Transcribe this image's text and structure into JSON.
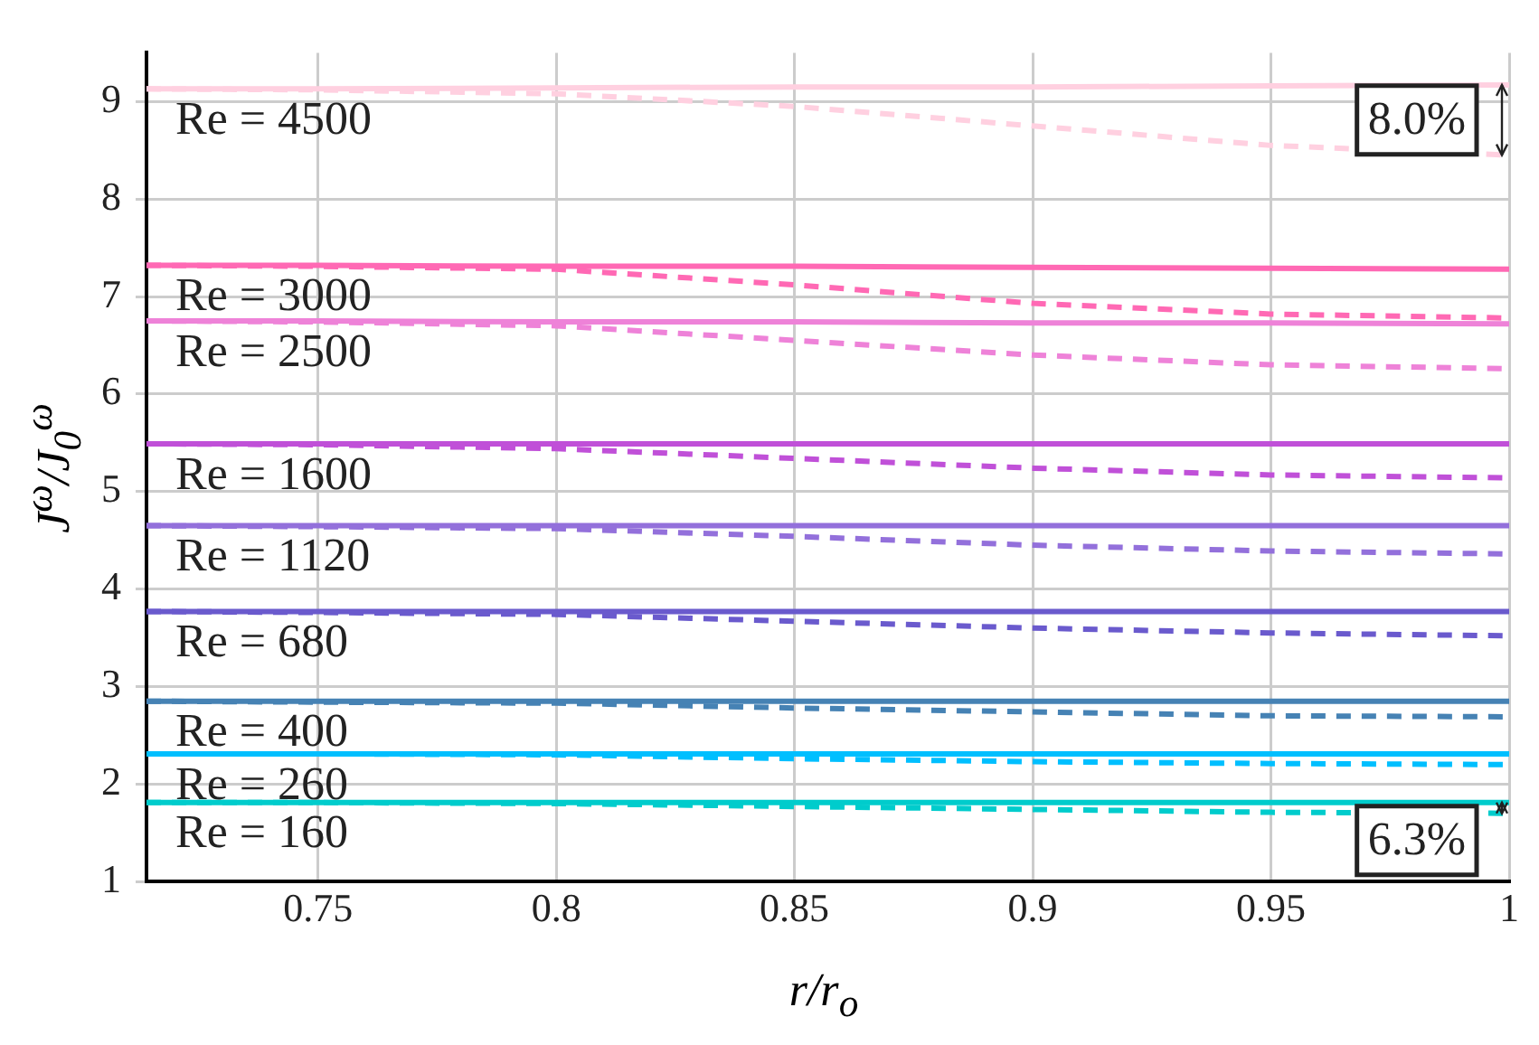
{
  "chart_data": {
    "type": "line",
    "xlabel": "r/r$_{o}$",
    "ylabel": "J$^{ω}$/J$_{0}$$^{ω}$",
    "x": [
      0.714,
      0.75,
      0.8,
      0.85,
      0.9,
      0.95,
      1.0
    ],
    "xlim": [
      0.714,
      1
    ],
    "xticks": [
      0.75,
      0.8,
      0.85,
      0.9,
      0.95,
      1
    ],
    "ylim": [
      1,
      9.5
    ],
    "yticks": [
      1,
      2,
      3,
      4,
      5,
      6,
      7,
      8,
      9
    ],
    "grid": true,
    "legend": false,
    "marker": "none",
    "series": [
      {
        "name": "Re = 4500",
        "color": "#ffd0e0",
        "line_style": "solid",
        "values": [
          9.13,
          9.13,
          9.14,
          9.15,
          9.15,
          9.16,
          9.17
        ]
      },
      {
        "color": "#ffd0e0",
        "line_style": "dashed",
        "values": [
          9.13,
          9.12,
          9.08,
          8.95,
          8.75,
          8.55,
          8.45
        ]
      },
      {
        "name": "Re = 3000",
        "color": "#ff69b4",
        "line_style": "solid",
        "values": [
          7.32,
          7.32,
          7.31,
          7.31,
          7.3,
          7.29,
          7.28
        ]
      },
      {
        "color": "#ff69b4",
        "line_style": "dashed",
        "values": [
          7.32,
          7.31,
          7.28,
          7.12,
          6.93,
          6.82,
          6.78
        ]
      },
      {
        "name": "Re = 2500",
        "color": "#ee82d8",
        "line_style": "solid",
        "values": [
          6.75,
          6.75,
          6.74,
          6.74,
          6.73,
          6.73,
          6.72
        ]
      },
      {
        "color": "#ee82d8",
        "line_style": "dashed",
        "values": [
          6.75,
          6.74,
          6.7,
          6.55,
          6.4,
          6.3,
          6.26
        ]
      },
      {
        "name": "Re = 1600",
        "color": "#c050d8",
        "line_style": "solid",
        "values": [
          5.49,
          5.49,
          5.49,
          5.49,
          5.49,
          5.49,
          5.49
        ]
      },
      {
        "color": "#c050d8",
        "line_style": "dashed",
        "values": [
          5.49,
          5.48,
          5.44,
          5.34,
          5.24,
          5.17,
          5.14
        ]
      },
      {
        "name": "Re = 1120",
        "color": "#9370db",
        "line_style": "solid",
        "values": [
          4.65,
          4.65,
          4.65,
          4.65,
          4.65,
          4.65,
          4.65
        ]
      },
      {
        "color": "#9370db",
        "line_style": "dashed",
        "values": [
          4.65,
          4.64,
          4.62,
          4.54,
          4.45,
          4.39,
          4.36
        ]
      },
      {
        "name": "Re = 680",
        "color": "#6a5acd",
        "line_style": "solid",
        "values": [
          3.77,
          3.77,
          3.77,
          3.77,
          3.77,
          3.77,
          3.77
        ]
      },
      {
        "color": "#6a5acd",
        "line_style": "dashed",
        "values": [
          3.77,
          3.76,
          3.74,
          3.67,
          3.6,
          3.55,
          3.52
        ]
      },
      {
        "name": "Re = 400",
        "color": "#4682b4",
        "line_style": "solid",
        "values": [
          2.85,
          2.85,
          2.85,
          2.85,
          2.85,
          2.85,
          2.85
        ]
      },
      {
        "color": "#4682b4",
        "line_style": "dashed",
        "values": [
          2.85,
          2.84,
          2.83,
          2.78,
          2.74,
          2.7,
          2.69
        ]
      },
      {
        "name": "Re = 260",
        "color": "#00bfff",
        "line_style": "solid",
        "values": [
          2.31,
          2.31,
          2.31,
          2.31,
          2.31,
          2.31,
          2.31
        ]
      },
      {
        "color": "#00bfff",
        "line_style": "dashed",
        "values": [
          2.31,
          2.31,
          2.3,
          2.26,
          2.23,
          2.21,
          2.2
        ]
      },
      {
        "name": "Re = 160",
        "color": "#00cccc",
        "line_style": "solid",
        "values": [
          1.81,
          1.81,
          1.81,
          1.81,
          1.81,
          1.81,
          1.81
        ]
      },
      {
        "color": "#00cccc",
        "line_style": "dashed",
        "values": [
          1.81,
          1.81,
          1.8,
          1.77,
          1.74,
          1.71,
          1.7
        ]
      }
    ],
    "annotations": [
      "8.0%",
      "6.3%"
    ]
  }
}
